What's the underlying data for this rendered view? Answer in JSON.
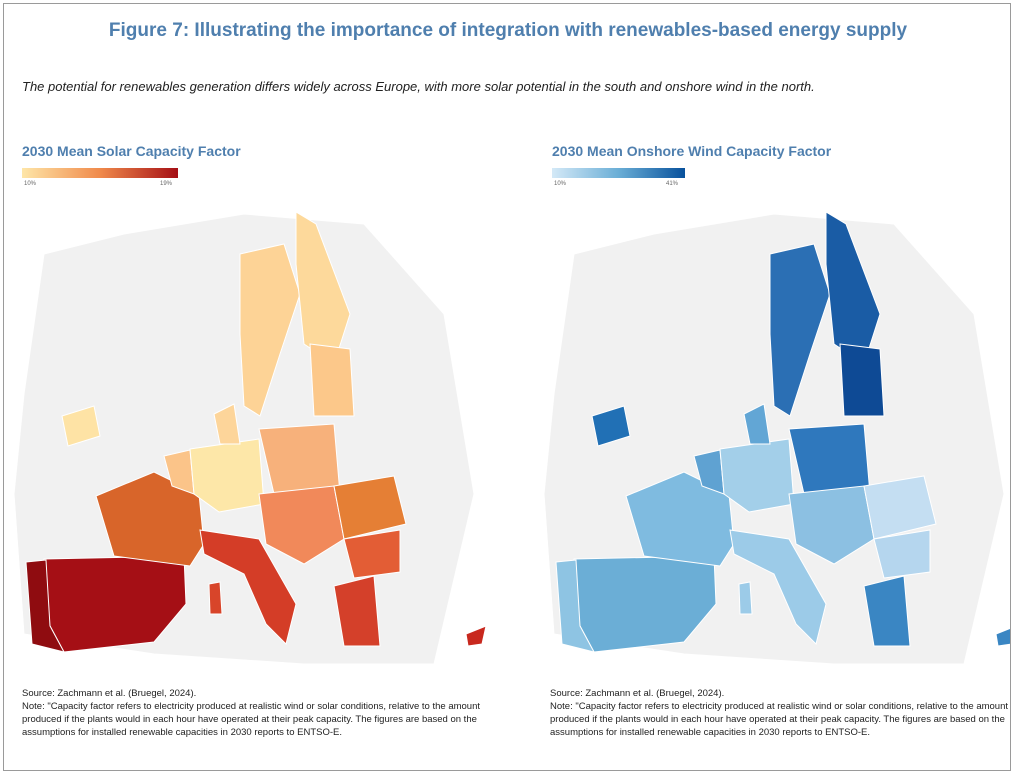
{
  "title": "Figure 7: Illustrating the importance of integration with renewables-based energy supply",
  "subtitle": "The potential for renewables generation differs widely across Europe, with more solar potential in the south and onshore wind in the north.",
  "maps": [
    {
      "title": "2030 Mean Solar Capacity Factor",
      "legend_min": "10%",
      "legend_max": "19%",
      "source": "Source: Zachmann et al. (Bruegel, 2024).",
      "note": "Note: \"Capacity factor refers to electricity produced at realistic wind or solar conditions, relative to the amount produced if the plants would in each hour have operated at their peak capacity. The figures are based on the assumptions for installed renewable capacities in 2030 reports to ENTSO-E."
    },
    {
      "title": "2030 Mean Onshore Wind Capacity Factor",
      "legend_min": "10%",
      "legend_max": "41%",
      "source": "Source: Zachmann et al. (Bruegel, 2024).",
      "note": "Note: \"Capacity factor refers to electricity produced at realistic wind or solar conditions, relative to the amount produced if the plants would in each hour have operated at their peak capacity. The figures are based on the assumptions for installed renewable capacities in 2030 reports to ENTSO-E."
    }
  ]
}
